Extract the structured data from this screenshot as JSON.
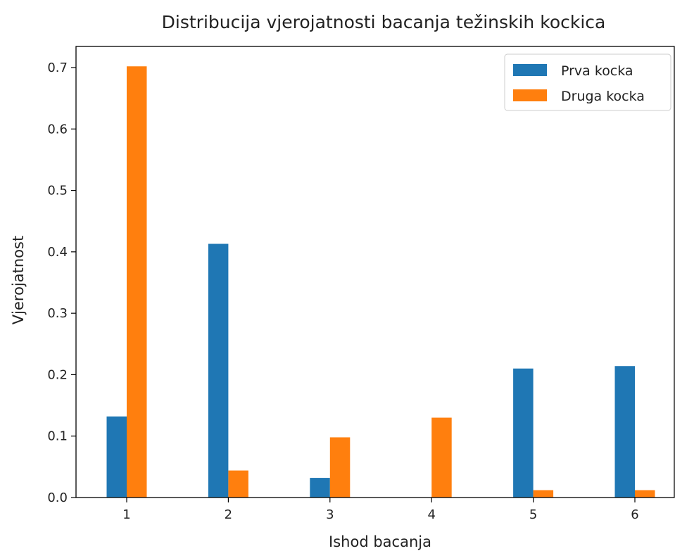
{
  "chart_data": {
    "type": "bar",
    "title": "Distribucija vjerojatnosti bacanja težinskih kockica",
    "xlabel": "Ishod bacanja",
    "ylabel": "Vjerojatnost",
    "categories": [
      "1",
      "2",
      "3",
      "4",
      "5",
      "6"
    ],
    "series": [
      {
        "name": "Prva kocka",
        "color": "#1f77b4",
        "values": [
          0.132,
          0.413,
          0.032,
          0.0,
          0.21,
          0.214
        ]
      },
      {
        "name": "Druga kocka",
        "color": "#ff7f0e",
        "values": [
          0.702,
          0.044,
          0.098,
          0.13,
          0.012,
          0.012
        ]
      }
    ],
    "ylim": [
      0,
      0.7
    ],
    "yticks": [
      "0.0",
      "0.1",
      "0.2",
      "0.3",
      "0.4",
      "0.5",
      "0.6",
      "0.7"
    ],
    "grid": false,
    "legend_position": "top-right"
  }
}
